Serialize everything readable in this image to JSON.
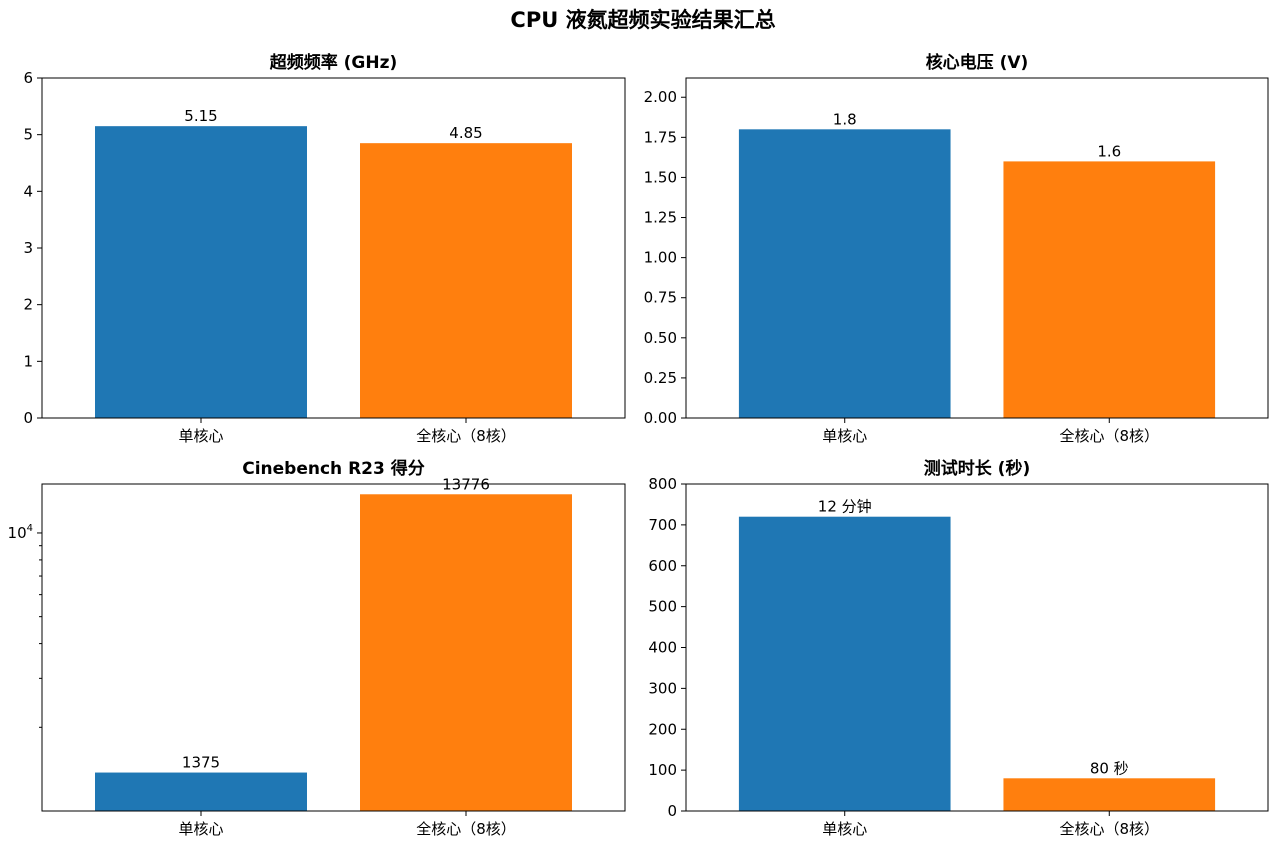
{
  "chart_data": {
    "title": "CPU 液氮超频实验结果汇总",
    "colors": [
      "#1f77b4",
      "#ff7f0e"
    ],
    "charts": [
      {
        "type": "bar",
        "title": "超频频率 (GHz)",
        "categories": [
          "单核心",
          "全核心（8核）"
        ],
        "values": [
          5.15,
          4.85
        ],
        "value_labels": [
          "5.15",
          "4.85"
        ],
        "ylim": [
          0,
          6
        ],
        "yscale": "linear",
        "yticks": [
          0,
          1,
          2,
          3,
          4,
          5,
          6
        ],
        "ytick_labels": [
          "0",
          "1",
          "2",
          "3",
          "4",
          "5",
          "6"
        ],
        "grid": false
      },
      {
        "type": "bar",
        "title": "核心电压 (V)",
        "categories": [
          "单核心",
          "全核心（8核）"
        ],
        "values": [
          1.8,
          1.6
        ],
        "value_labels": [
          "1.8",
          "1.6"
        ],
        "ylim": [
          0,
          2.12
        ],
        "yscale": "linear",
        "yticks": [
          0,
          0.25,
          0.5,
          0.75,
          1.0,
          1.25,
          1.5,
          1.75,
          2.0
        ],
        "ytick_labels": [
          "0.00",
          "0.25",
          "0.50",
          "0.75",
          "1.00",
          "1.25",
          "1.50",
          "1.75",
          "2.00"
        ],
        "grid": false
      },
      {
        "type": "bar",
        "title": "Cinebench R23 得分",
        "categories": [
          "单核心",
          "全核心（8核）"
        ],
        "values": [
          1375,
          13776
        ],
        "value_labels": [
          "1375",
          "13776"
        ],
        "ylim": [
          1000,
          15000
        ],
        "yscale": "log",
        "yticks": [
          10000
        ],
        "ytick_labels": [
          "10^4"
        ],
        "grid": false
      },
      {
        "type": "bar",
        "title": "测试时长 (秒)",
        "categories": [
          "单核心",
          "全核心（8核）"
        ],
        "values": [
          720,
          80
        ],
        "value_labels": [
          "12 分钟",
          "80 秒"
        ],
        "ylim": [
          0,
          800
        ],
        "yscale": "linear",
        "yticks": [
          0,
          100,
          200,
          300,
          400,
          500,
          600,
          700,
          800
        ],
        "ytick_labels": [
          "0",
          "100",
          "200",
          "300",
          "400",
          "500",
          "600",
          "700",
          "800"
        ],
        "grid": false
      }
    ]
  }
}
